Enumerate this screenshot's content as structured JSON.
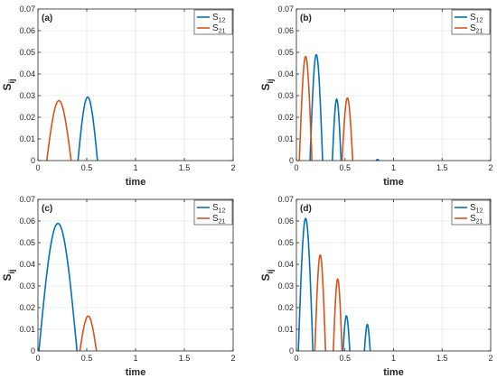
{
  "chart_data": [
    {
      "type": "line",
      "panel_label": "(a)",
      "xlabel": "time",
      "ylabel_main": "S",
      "ylabel_sub": "ij",
      "xlim": [
        0,
        2
      ],
      "ylim": [
        0,
        0.07
      ],
      "x_ticks": [
        "0",
        "0.5",
        "1",
        "1.5",
        "2"
      ],
      "y_ticks": [
        "0",
        "0.01",
        "0.02",
        "0.03",
        "0.04",
        "0.05",
        "0.06",
        "0.07"
      ],
      "grid": true,
      "legend_position": "top-right",
      "series": [
        {
          "name_main": "S",
          "name_sub": "12",
          "color": "#0072BD",
          "humps": [
            [
              0.41,
              0.61,
              0.0293
            ]
          ]
        },
        {
          "name_main": "S",
          "name_sub": "21",
          "color": "#D95319",
          "humps": [
            [
              0.09,
              0.34,
              0.0277
            ]
          ]
        }
      ]
    },
    {
      "type": "line",
      "panel_label": "(b)",
      "xlabel": "time",
      "ylabel_main": "S",
      "ylabel_sub": "ij",
      "xlim": [
        0,
        2
      ],
      "ylim": [
        0,
        0.07
      ],
      "x_ticks": [
        "0",
        "0.5",
        "1",
        "1.5",
        "2"
      ],
      "y_ticks": [
        "0",
        "0.01",
        "0.02",
        "0.03",
        "0.04",
        "0.05",
        "0.06",
        "0.07"
      ],
      "grid": true,
      "legend_position": "top-right",
      "series": [
        {
          "name_main": "S",
          "name_sub": "12",
          "color": "#0072BD",
          "humps": [
            [
              0.14,
              0.27,
              0.0489
            ],
            [
              0.37,
              0.46,
              0.0284
            ],
            [
              0.82,
              0.85,
              0.0005
            ]
          ]
        },
        {
          "name_main": "S",
          "name_sub": "21",
          "color": "#D95319",
          "humps": [
            [
              0.03,
              0.16,
              0.0481
            ],
            [
              0.47,
              0.58,
              0.0289
            ]
          ]
        }
      ]
    },
    {
      "type": "line",
      "panel_label": "(c)",
      "xlabel": "time",
      "ylabel_main": "S",
      "ylabel_sub": "ij",
      "xlim": [
        0,
        2
      ],
      "ylim": [
        0,
        0.07
      ],
      "x_ticks": [
        "0",
        "0.5",
        "1",
        "1.5",
        "2"
      ],
      "y_ticks": [
        "0",
        "0.01",
        "0.02",
        "0.03",
        "0.04",
        "0.05",
        "0.06",
        "0.07"
      ],
      "grid": true,
      "legend_position": "top-right",
      "series": [
        {
          "name_main": "S",
          "name_sub": "12",
          "color": "#0072BD",
          "humps": [
            [
              0.01,
              0.4,
              0.0589
            ]
          ]
        },
        {
          "name_main": "S",
          "name_sub": "21",
          "color": "#D95319",
          "humps": [
            [
              0.43,
              0.6,
              0.0161
            ]
          ]
        }
      ]
    },
    {
      "type": "line",
      "panel_label": "(d)",
      "xlabel": "time",
      "ylabel_main": "S",
      "ylabel_sub": "ij",
      "xlim": [
        0,
        2
      ],
      "ylim": [
        0,
        0.07
      ],
      "x_ticks": [
        "0",
        "0.5",
        "1",
        "1.5",
        "2"
      ],
      "y_ticks": [
        "0",
        "0.01",
        "0.02",
        "0.03",
        "0.04",
        "0.05",
        "0.06",
        "0.07"
      ],
      "grid": true,
      "legend_position": "top-right",
      "series": [
        {
          "name_main": "S",
          "name_sub": "12",
          "color": "#0072BD",
          "humps": [
            [
              0.02,
              0.17,
              0.0612
            ],
            [
              0.48,
              0.55,
              0.0162
            ],
            [
              0.7,
              0.76,
              0.0122
            ]
          ]
        },
        {
          "name_main": "S",
          "name_sub": "21",
          "color": "#D95319",
          "humps": [
            [
              0.19,
              0.3,
              0.0443
            ],
            [
              0.38,
              0.47,
              0.0332
            ]
          ]
        }
      ]
    }
  ]
}
